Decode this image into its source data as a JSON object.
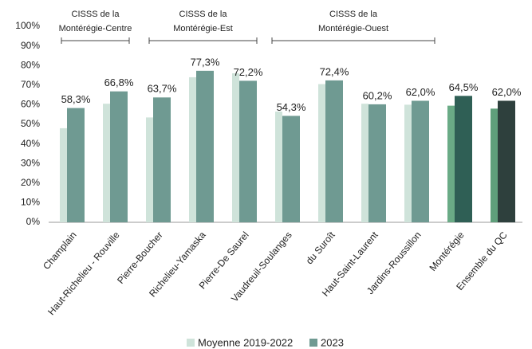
{
  "chart_data": {
    "type": "bar",
    "categories": [
      "Champlain",
      "Haut-Richelieu - Rouville",
      "Pierre-Boucher",
      "Richelieu-Yamaska",
      "Pierre-De Saurel",
      "Vaudreuil-Soulanges",
      "du Suroît",
      "Haut-Saint-Laurent",
      "Jardins-Roussillon",
      "Montérégie",
      "Ensemble du QC"
    ],
    "series": [
      {
        "name": "Moyenne 2019-2022",
        "color": "#cfe3da",
        "colors": [
          "#cfe3da",
          "#cfe3da",
          "#cfe3da",
          "#cfe3da",
          "#cfe3da",
          "#cfe3da",
          "#cfe3da",
          "#cfe3da",
          "#cfe3da",
          "#6aab86",
          "#5f9f7b"
        ],
        "values": [
          48,
          60.5,
          53.5,
          74,
          76,
          56.5,
          70.5,
          60.5,
          60,
          59.5,
          58
        ]
      },
      {
        "name": "2023",
        "color": "#6f9a92",
        "colors": [
          "#6f9a92",
          "#6f9a92",
          "#6f9a92",
          "#6f9a92",
          "#6f9a92",
          "#6f9a92",
          "#6f9a92",
          "#6f9a92",
          "#6f9a92",
          "#2f5f55",
          "#2e403d"
        ],
        "values": [
          58.3,
          66.8,
          63.7,
          77.3,
          72.2,
          54.3,
          72.4,
          60.2,
          62.0,
          64.5,
          62.0
        ],
        "value_labels": [
          "58,3%",
          "66,8%",
          "63,7%",
          "77,3%",
          "72,2%",
          "54,3%",
          "72,4%",
          "60,2%",
          "62,0%",
          "64,5%",
          "62,0%"
        ]
      }
    ],
    "ylim": [
      0,
      100
    ],
    "yticks": [
      {
        "value": 0,
        "label": "0%"
      },
      {
        "value": 10,
        "label": "10%"
      },
      {
        "value": 20,
        "label": "20%"
      },
      {
        "value": 30,
        "label": "30%"
      },
      {
        "value": 40,
        "label": "40%"
      },
      {
        "value": 50,
        "label": "50%"
      },
      {
        "value": 60,
        "label": "60%"
      },
      {
        "value": 70,
        "label": "70%"
      },
      {
        "value": 80,
        "label": "80%"
      },
      {
        "value": 90,
        "label": "90%"
      },
      {
        "value": 100,
        "label": "100%"
      }
    ],
    "grid": false,
    "legend": "bottom",
    "annotations": [
      {
        "lines": [
          "CISSS de la",
          "Montérégie-Centre"
        ]
      },
      {
        "lines": [
          "CISSS de la",
          "Montérégie-Est"
        ]
      },
      {
        "lines": [
          "CISSS de la",
          "Montérégie-Ouest"
        ]
      }
    ]
  }
}
